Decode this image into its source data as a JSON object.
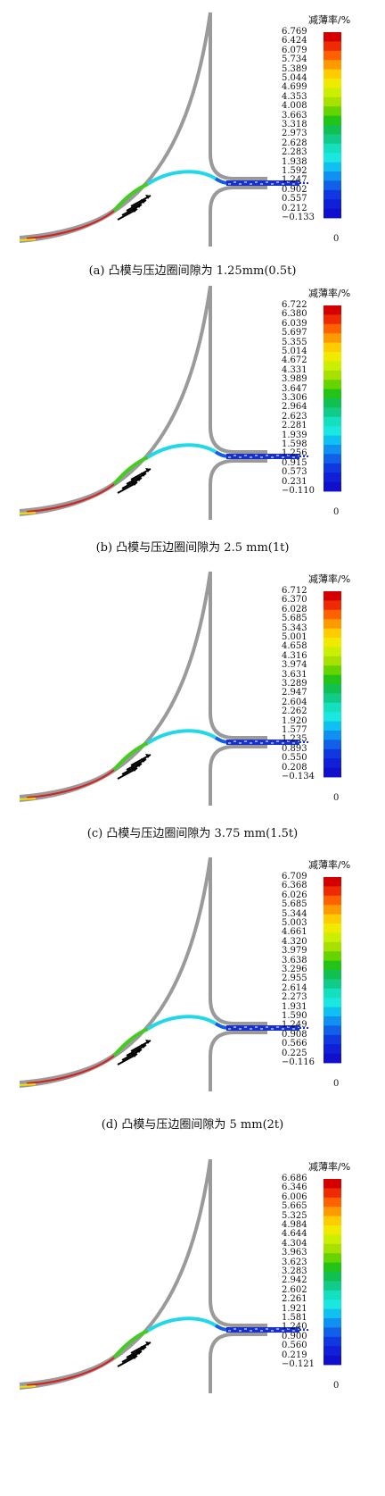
{
  "legend_title": "减薄率/%",
  "bottom_label": "0",
  "colorbar_colors": [
    "#d40000",
    "#ee2a00",
    "#ff6000",
    "#ff9900",
    "#ffcc00",
    "#f0ea00",
    "#ccee00",
    "#a8e000",
    "#66d400",
    "#22c418",
    "#10c050",
    "#10cc88",
    "#14e0c0",
    "#1ae8e0",
    "#10c0f0",
    "#1090f0",
    "#1060e8",
    "#1038e0",
    "#1020d8",
    "#1010cc"
  ],
  "panels": [
    {
      "caption": "(a) 凸模与压边圈间隙为 1.25mm(0.5t)",
      "ticks": [
        "6.769",
        "6.424",
        "6.079",
        "5.734",
        "5.389",
        "5.044",
        "4.699",
        "4.353",
        "4.008",
        "3.663",
        "3.318",
        "2.973",
        "2.628",
        "2.283",
        "1.938",
        "1.592",
        "1.247",
        "0.902",
        "0.557",
        "0.212",
        "−0.133"
      ]
    },
    {
      "caption": "(b) 凸模与压边圈间隙为 2.5 mm(1t)",
      "ticks": [
        "6.722",
        "6.380",
        "6.039",
        "5.697",
        "5.355",
        "5.014",
        "4.672",
        "4.331",
        "3.989",
        "3.647",
        "3.306",
        "2.964",
        "2.623",
        "2.281",
        "1.939",
        "1.598",
        "1.256",
        "0.915",
        "0.573",
        "0.231",
        "−0.110"
      ]
    },
    {
      "caption": "(c) 凸模与压边圈间隙为 3.75 mm(1.5t)",
      "ticks": [
        "6.712",
        "6.370",
        "6.028",
        "5.685",
        "5.343",
        "5.001",
        "4.658",
        "4.316",
        "3.974",
        "3.631",
        "3.289",
        "2.947",
        "2.604",
        "2.262",
        "1.920",
        "1.577",
        "1.235",
        "0.893",
        "0.550",
        "0.208",
        "−0.134"
      ]
    },
    {
      "caption": "(d) 凸模与压边圈间隙为 5 mm(2t)",
      "ticks": [
        "6.709",
        "6.368",
        "6.026",
        "5.685",
        "5.344",
        "5.003",
        "4.661",
        "4.320",
        "3.979",
        "3.638",
        "3.296",
        "2.955",
        "2.614",
        "2.273",
        "1.931",
        "1.590",
        "1.249",
        "0.908",
        "0.566",
        "0.225",
        "−0.116"
      ]
    },
    {
      "caption": "",
      "ticks": [
        "6.686",
        "6.346",
        "6.006",
        "5.665",
        "5.325",
        "4.984",
        "4.644",
        "4.304",
        "3.963",
        "3.623",
        "3.283",
        "2.942",
        "2.602",
        "2.261",
        "1.921",
        "1.581",
        "1.240",
        "0.900",
        "0.560",
        "0.219",
        "−0.121"
      ]
    }
  ]
}
